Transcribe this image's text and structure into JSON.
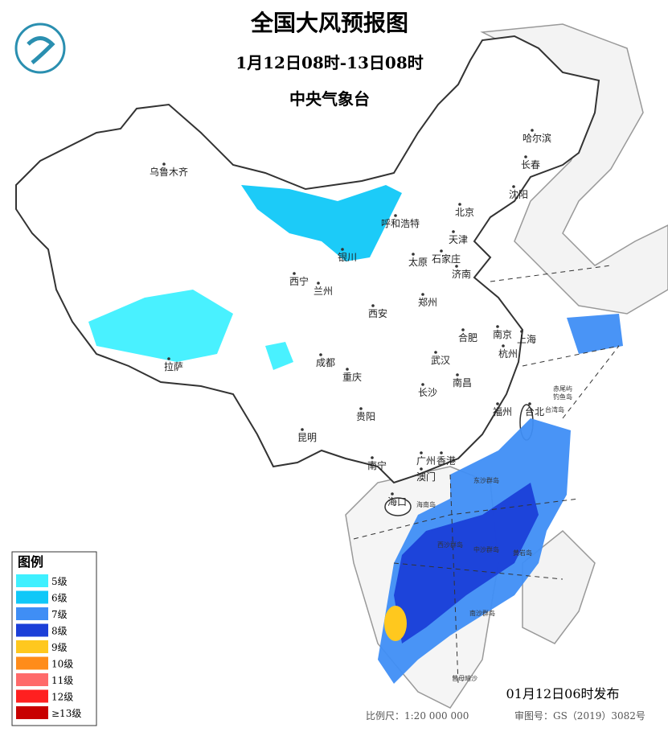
{
  "header": {
    "title": "全国大风预报图",
    "period": "1月12日08时-13日08时",
    "issuer": "中央气象台"
  },
  "legend": {
    "title": "图例",
    "items": [
      {
        "label": "5级",
        "color": "#3ff0ff"
      },
      {
        "label": "6级",
        "color": "#10c8f8"
      },
      {
        "label": "7级",
        "color": "#3f8ef5"
      },
      {
        "label": "8级",
        "color": "#1b3fd8"
      },
      {
        "label": "9级",
        "color": "#ffc81e"
      },
      {
        "label": "10级",
        "color": "#ff8c1a"
      },
      {
        "label": "11级",
        "color": "#ff6a6a"
      },
      {
        "label": "12级",
        "color": "#ff2020"
      },
      {
        "label": "≥13级",
        "color": "#c80000"
      }
    ]
  },
  "cities": [
    "乌鲁木齐",
    "哈尔滨",
    "长春",
    "沈阳",
    "呼和浩特",
    "北京",
    "天津",
    "银川",
    "太原",
    "石家庄",
    "济南",
    "西宁",
    "兰州",
    "郑州",
    "西安",
    "南京",
    "上海",
    "合肥",
    "杭州",
    "拉萨",
    "成都",
    "武汉",
    "重庆",
    "南昌",
    "长沙",
    "福州",
    "台北",
    "贵阳",
    "昆明",
    "广州",
    "香港",
    "南宁",
    "澳门",
    "海口"
  ],
  "places": [
    "海南岛",
    "东沙群岛",
    "西沙群岛",
    "中沙群岛",
    "黄岩岛",
    "南沙群岛",
    "赤尾屿",
    "钓鱼岛",
    "台湾岛",
    "曾母暗沙"
  ],
  "footer": {
    "release": "01月12日06时发布",
    "scale": "比例尺：1:20 000 000",
    "review": "审图号：GS（2019）3082号"
  }
}
